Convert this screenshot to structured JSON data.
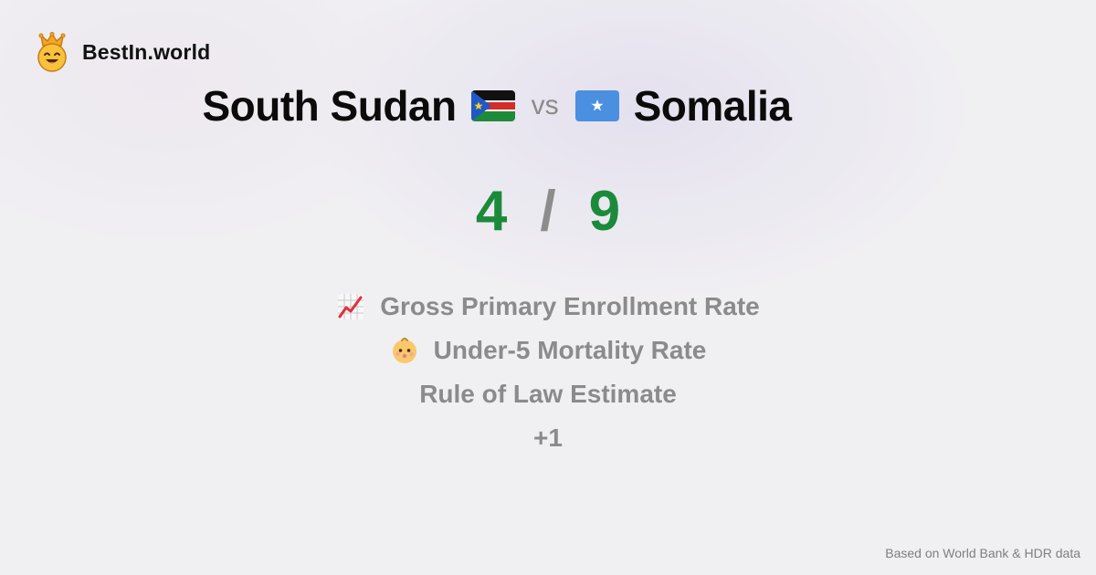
{
  "brand": {
    "name": "BestIn.world",
    "logo_icon": "crowned-smiley-icon"
  },
  "comparison": {
    "left_country": "South Sudan",
    "left_flag_icon": "south-sudan-flag-icon",
    "vs_label": "vs",
    "right_country": "Somalia",
    "right_flag_icon": "somalia-flag-icon"
  },
  "score": {
    "left": "4",
    "separator": "/",
    "right": "9",
    "color": "#1b8a3a"
  },
  "metrics": [
    {
      "icon": "chart-increasing-icon",
      "label": "Gross Primary Enrollment Rate"
    },
    {
      "icon": "baby-icon",
      "label": "Under-5 Mortality Rate"
    },
    {
      "icon": "",
      "label": "Rule of Law Estimate"
    },
    {
      "icon": "",
      "label": "+1"
    }
  ],
  "footer": {
    "source": "Based on World Bank & HDR data"
  }
}
